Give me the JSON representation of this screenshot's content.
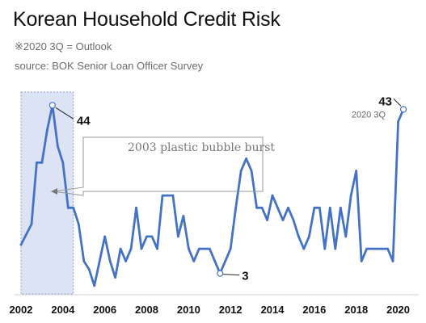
{
  "header": {
    "title": "Korean Household Credit Risk",
    "note": "※2020 3Q = Outlook",
    "source": "source: BOK Senior Loan Officer Survey"
  },
  "colors": {
    "line": "#4472c4",
    "highlight_fill": "#dbe3f4",
    "highlight_stroke": "#8fa0c8",
    "annotation_box": "#9a9a9a"
  },
  "chart_data": {
    "type": "line",
    "title": "Korean Household Credit Risk",
    "xlabel": "",
    "ylabel": "",
    "x_ticks": [
      "2002",
      "2004",
      "2006",
      "2008",
      "2010",
      "2012",
      "2014",
      "2016",
      "2018",
      "2020"
    ],
    "xlim": [
      2002.0,
      2020.75
    ],
    "ylim": [
      -2,
      48
    ],
    "grid": false,
    "highlight_span": [
      2002.0,
      2004.5
    ],
    "series": [
      {
        "values": [
          [
            2002.0,
            10
          ],
          [
            2002.5,
            15
          ],
          [
            2002.75,
            30
          ],
          [
            2003.0,
            30
          ],
          [
            2003.25,
            38
          ],
          [
            2003.5,
            44
          ],
          [
            2003.75,
            34
          ],
          [
            2004.0,
            30
          ],
          [
            2004.25,
            19
          ],
          [
            2004.5,
            19
          ],
          [
            2004.75,
            15
          ],
          [
            2005.0,
            6
          ],
          [
            2005.25,
            4
          ],
          [
            2005.5,
            0
          ],
          [
            2005.75,
            6
          ],
          [
            2006.0,
            12
          ],
          [
            2006.25,
            6
          ],
          [
            2006.5,
            2
          ],
          [
            2006.75,
            9
          ],
          [
            2007.0,
            6
          ],
          [
            2007.25,
            9
          ],
          [
            2007.5,
            19
          ],
          [
            2007.75,
            9
          ],
          [
            2008.0,
            12
          ],
          [
            2008.25,
            12
          ],
          [
            2008.5,
            9
          ],
          [
            2008.75,
            22
          ],
          [
            2009.0,
            22
          ],
          [
            2009.25,
            22
          ],
          [
            2009.5,
            12
          ],
          [
            2009.75,
            17
          ],
          [
            2010.0,
            9
          ],
          [
            2010.25,
            6
          ],
          [
            2010.5,
            9
          ],
          [
            2010.75,
            9
          ],
          [
            2011.0,
            9
          ],
          [
            2011.25,
            6
          ],
          [
            2011.5,
            3
          ],
          [
            2011.75,
            6
          ],
          [
            2012.0,
            9
          ],
          [
            2012.25,
            19
          ],
          [
            2012.5,
            28
          ],
          [
            2012.75,
            31
          ],
          [
            2013.0,
            28
          ],
          [
            2013.25,
            19
          ],
          [
            2013.5,
            19
          ],
          [
            2013.75,
            16
          ],
          [
            2014.0,
            22
          ],
          [
            2014.25,
            19
          ],
          [
            2014.5,
            16
          ],
          [
            2014.75,
            19
          ],
          [
            2015.0,
            16
          ],
          [
            2015.25,
            12
          ],
          [
            2015.5,
            9
          ],
          [
            2015.75,
            12
          ],
          [
            2016.0,
            19
          ],
          [
            2016.25,
            19
          ],
          [
            2016.5,
            9
          ],
          [
            2016.75,
            19
          ],
          [
            2017.0,
            9
          ],
          [
            2017.25,
            19
          ],
          [
            2017.5,
            12
          ],
          [
            2017.75,
            22
          ],
          [
            2018.0,
            28
          ],
          [
            2018.25,
            6
          ],
          [
            2018.5,
            9
          ],
          [
            2018.75,
            9
          ],
          [
            2019.0,
            9
          ],
          [
            2019.25,
            9
          ],
          [
            2019.5,
            9
          ],
          [
            2019.75,
            6
          ],
          [
            2020.0,
            40
          ],
          [
            2020.25,
            43
          ]
        ]
      }
    ],
    "annotations": {
      "peak_label": "44",
      "peak_x": 2003.5,
      "low_label": "3",
      "low_x": 2011.5,
      "last_value_label": "43",
      "last_period_label": "2020 3Q",
      "last_x": 2020.25,
      "event_text": "2003 plastic bubble burst"
    }
  }
}
